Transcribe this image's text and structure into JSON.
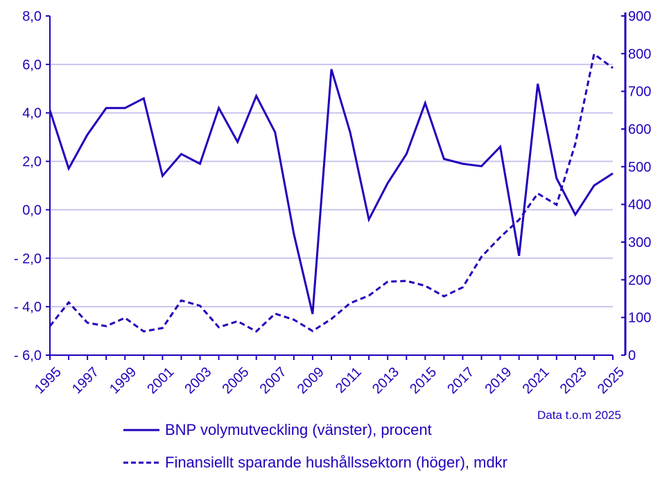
{
  "chart_data": {
    "type": "line",
    "title": "",
    "note": "Data t.o.m 2025",
    "x": [
      1995,
      1996,
      1997,
      1998,
      1999,
      2000,
      2001,
      2002,
      2003,
      2004,
      2005,
      2006,
      2007,
      2008,
      2009,
      2010,
      2011,
      2012,
      2013,
      2014,
      2015,
      2016,
      2017,
      2018,
      2019,
      2020,
      2021,
      2022,
      2023,
      2024,
      2025
    ],
    "x_tick_labels": [
      "1995",
      "1997",
      "1999",
      "2001",
      "2003",
      "2005",
      "2007",
      "2009",
      "2011",
      "2013",
      "2015",
      "2017",
      "2019",
      "2021",
      "2023",
      "2025"
    ],
    "y_left": {
      "range": [
        -6,
        8
      ],
      "ticks": [
        "8,0",
        "6,0",
        "4,0",
        "2,0",
        "0,0",
        "- 2,0",
        "- 4,0",
        "- 6,0"
      ]
    },
    "y_right": {
      "range": [
        0,
        900
      ],
      "ticks": [
        "900",
        "800",
        "700",
        "600",
        "500",
        "400",
        "300",
        "200",
        "100",
        "0"
      ]
    },
    "grid": true,
    "legend_placement": "bottom",
    "colors": {
      "series": "#2200BB",
      "grid": "#C8C4EE"
    },
    "series": [
      {
        "name": "BNP volymutveckling (vänster), procent",
        "axis": "left",
        "style": "solid",
        "values": [
          4.1,
          1.7,
          3.1,
          4.2,
          4.2,
          4.6,
          1.4,
          2.3,
          1.9,
          4.2,
          2.8,
          4.7,
          3.2,
          -1.0,
          -4.3,
          5.8,
          3.2,
          -0.4,
          1.1,
          2.3,
          4.4,
          2.1,
          1.9,
          1.8,
          2.6,
          -1.9,
          5.2,
          1.3,
          -0.2,
          1.0,
          1.5
        ]
      },
      {
        "name": "Finansiellt sparande hushållssektorn (höger), mdkr",
        "axis": "right",
        "style": "dashed",
        "values": [
          77,
          140,
          86,
          77,
          99,
          63,
          72,
          145,
          131,
          74,
          90,
          63,
          110,
          94,
          64,
          96,
          138,
          158,
          195,
          197,
          184,
          156,
          180,
          261,
          313,
          359,
          429,
          399,
          561,
          799,
          762
        ]
      }
    ]
  }
}
